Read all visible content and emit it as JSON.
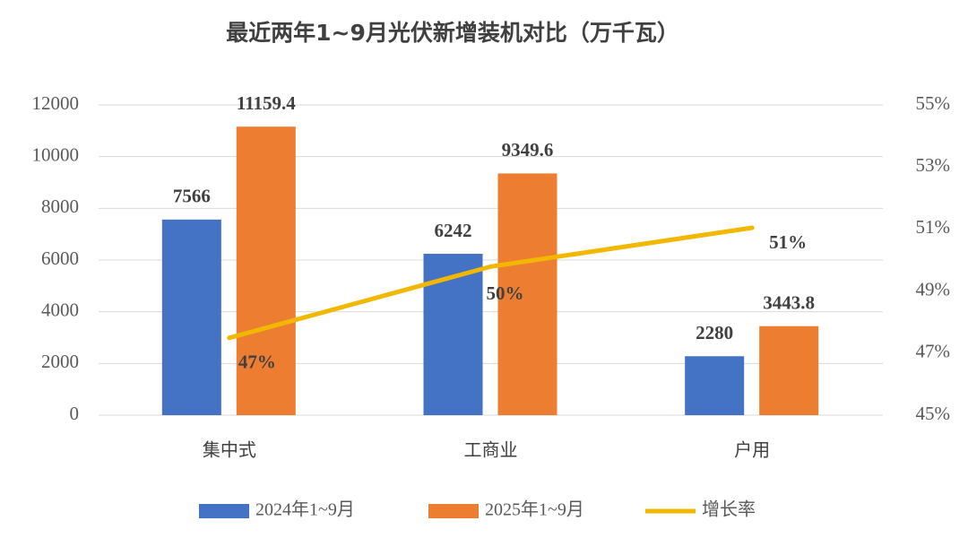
{
  "chart_data": {
    "type": "bar-line",
    "title": "最近两年1~9月光伏新增装机对比（万千瓦）",
    "categories": [
      "集中式",
      "工商业",
      "户用"
    ],
    "series": [
      {
        "name": "2024年1~9月",
        "color": "#4472c4",
        "type": "bar",
        "values": [
          7566,
          6242,
          2280
        ]
      },
      {
        "name": "2025年1~9月",
        "color": "#ed7d31",
        "type": "bar",
        "values": [
          11159.4,
          9349.6,
          3443.8
        ]
      },
      {
        "name": "增长率",
        "color": "#f2b800",
        "type": "line",
        "axis": "y2",
        "values": [
          47.49,
          49.79,
          51.04
        ],
        "value_labels": [
          "47%",
          "50%",
          "51%"
        ]
      }
    ],
    "ylim": [
      0,
      12000
    ],
    "yticks": [
      0,
      2000,
      4000,
      6000,
      8000,
      10000,
      12000
    ],
    "y2lim": [
      45,
      55
    ],
    "y2ticks": [
      {
        "value": 45,
        "label": "45%"
      },
      {
        "value": 47,
        "label": "47%"
      },
      {
        "value": 49,
        "label": "49%"
      },
      {
        "value": 51,
        "label": "51%"
      },
      {
        "value": 53,
        "label": "53%"
      },
      {
        "value": 55,
        "label": "55%"
      }
    ],
    "grid": true,
    "legend": "bottom"
  }
}
